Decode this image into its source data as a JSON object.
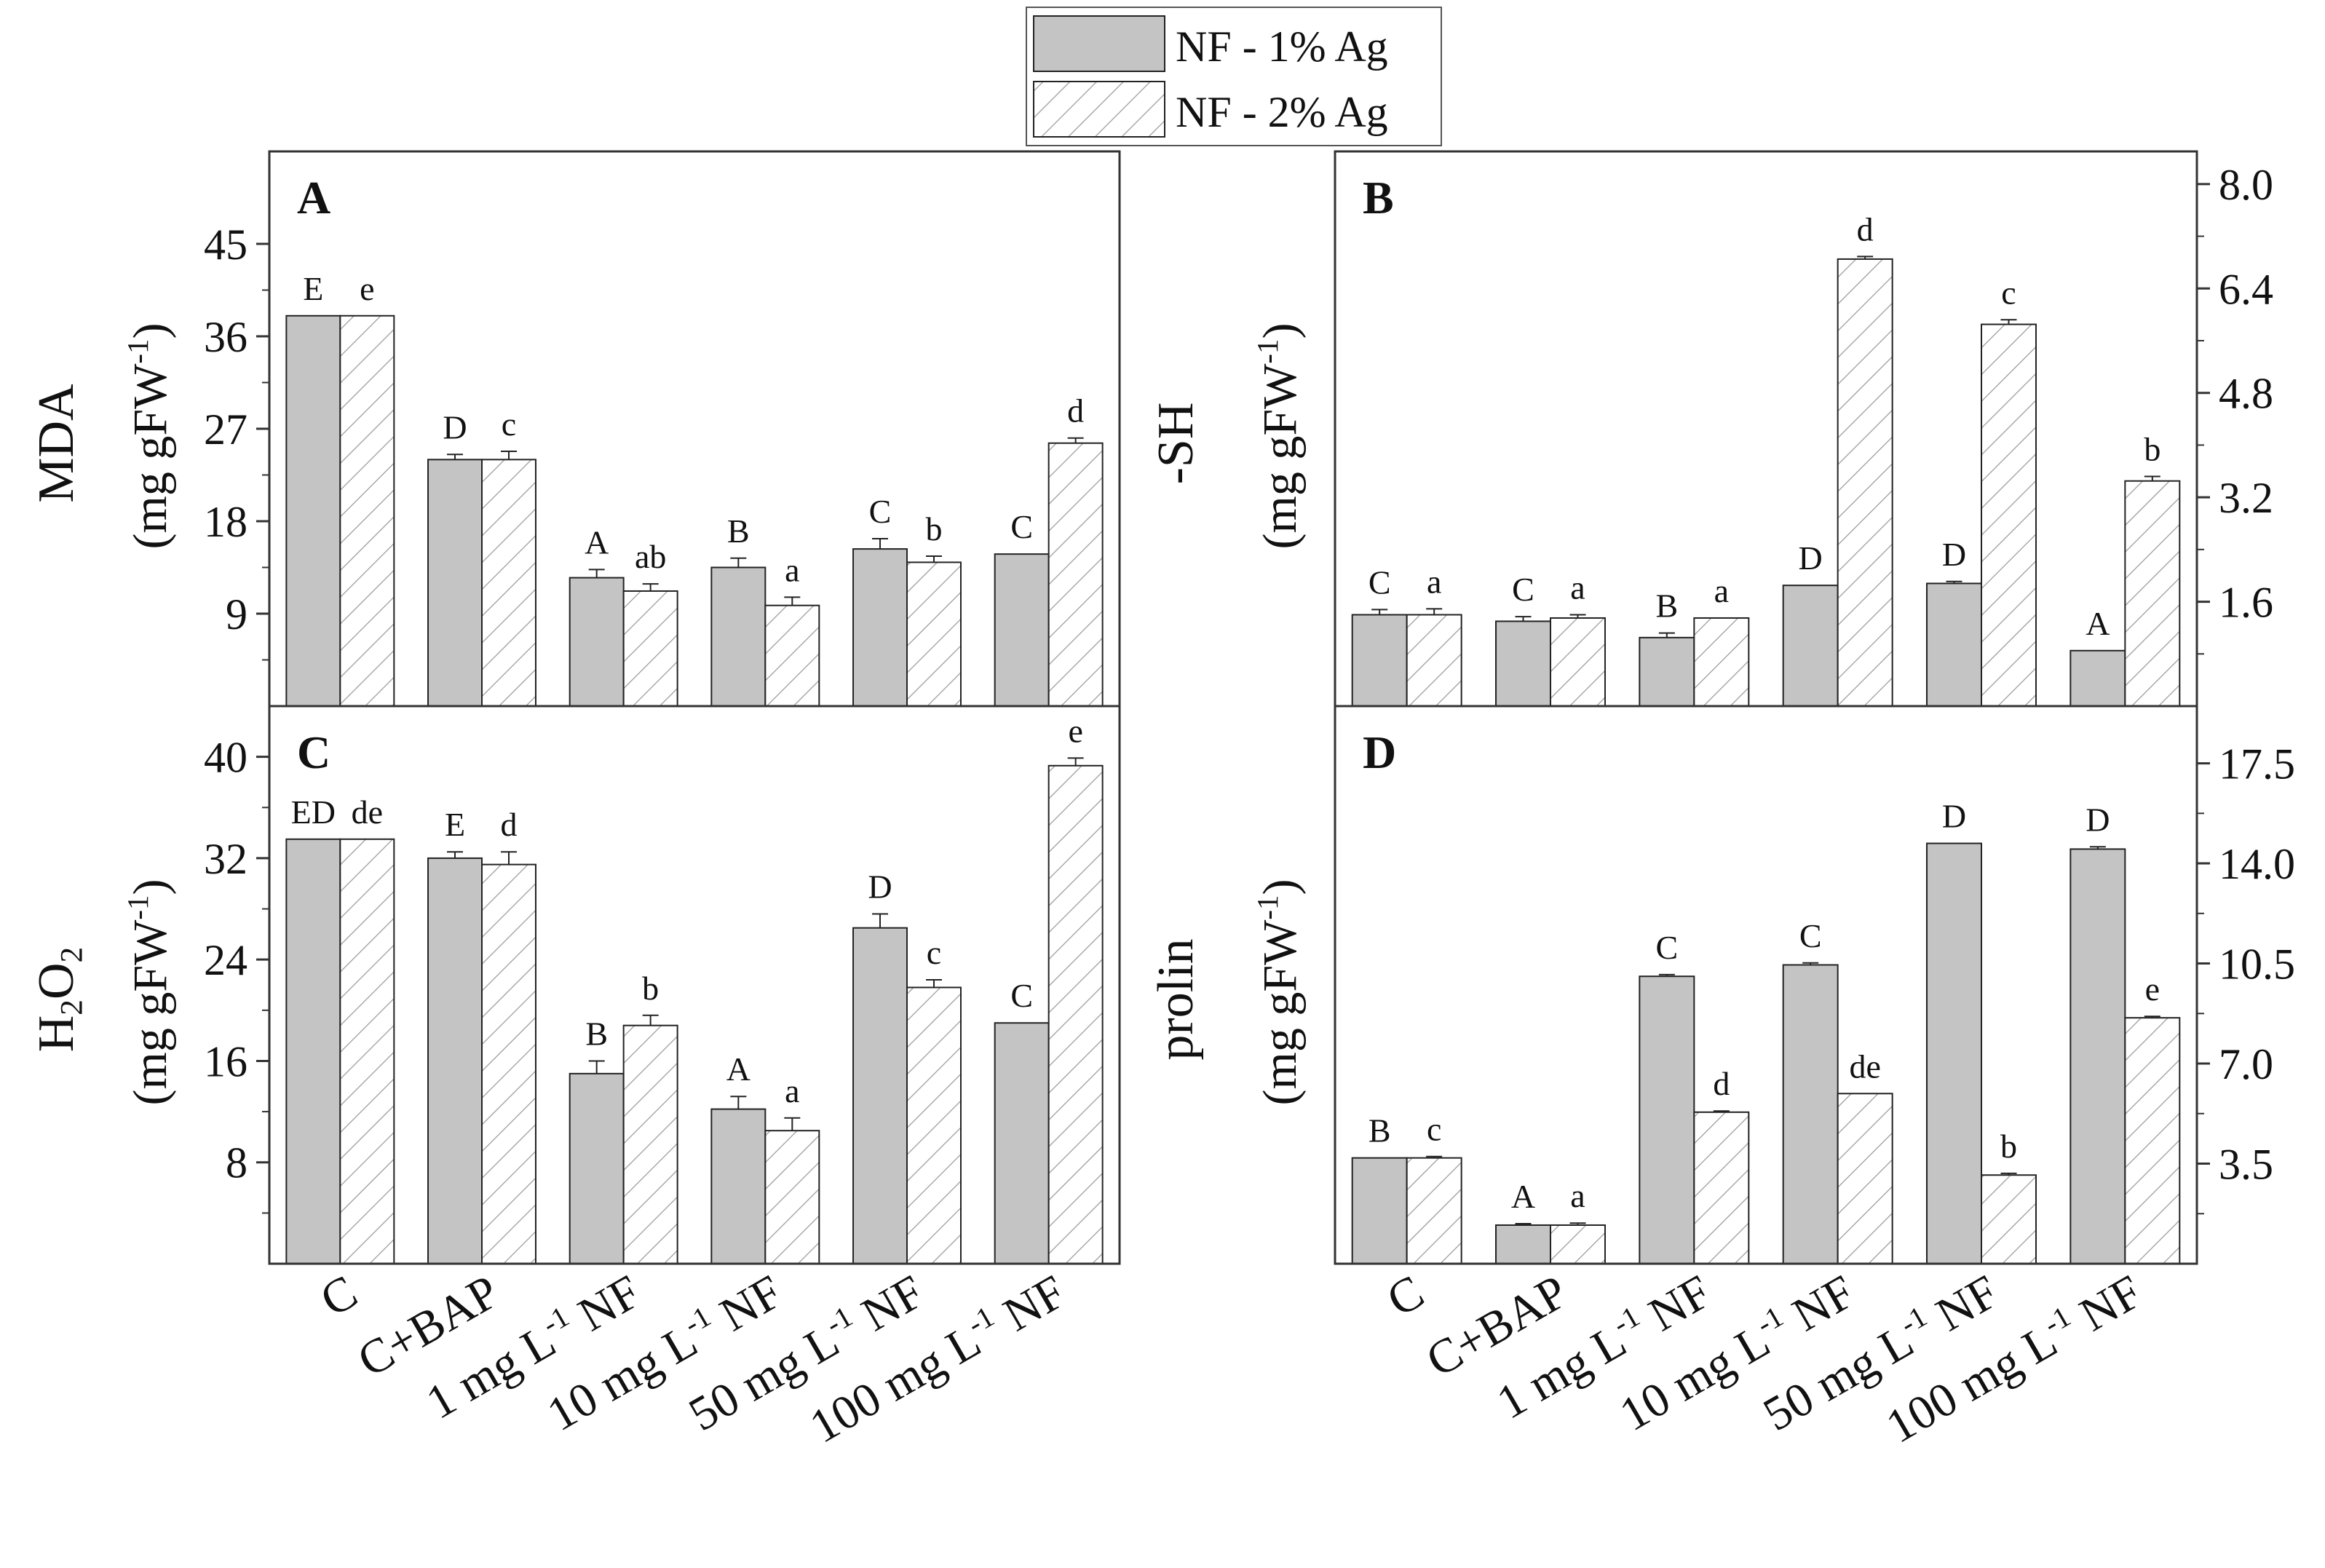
{
  "legend": {
    "entries": [
      {
        "label": "NF - 1% Ag",
        "style": "solid"
      },
      {
        "label": "NF - 2% Ag",
        "style": "hatched"
      }
    ]
  },
  "colors": {
    "bar1": "#c4c4c4",
    "hatch": "#9a9a9a",
    "axis": "#333333"
  },
  "categories": [
    "C",
    "C+BAP",
    "1 mg L-1 NF",
    "10 mg L-1 NF",
    "50 mg L-1 NF",
    "100 mg L-1 NF"
  ],
  "chart_data": [
    {
      "panel": "A",
      "type": "bar",
      "ylabel": "MDA",
      "ylabel_unit": "(mg gFW-1)",
      "yaxis_side": "left",
      "ylim": [
        0,
        54
      ],
      "ticks": [
        "9",
        "18",
        "27",
        "36",
        "45"
      ],
      "series": [
        {
          "name": "NF - 1% Ag",
          "values": [
            38,
            24,
            12.5,
            13.5,
            15.3,
            14.8
          ],
          "errors": [
            0,
            0.5,
            0.8,
            0.9,
            1.0,
            0
          ],
          "letters": [
            "E",
            "D",
            "A",
            "B",
            "C",
            "C"
          ]
        },
        {
          "name": "NF - 2% Ag",
          "values": [
            38,
            24,
            11.2,
            9.8,
            14.0,
            25.6
          ],
          "errors": [
            0,
            0.8,
            0.7,
            0.8,
            0.6,
            0.5
          ],
          "letters": [
            "e",
            "c",
            "ab",
            "a",
            "b",
            "d"
          ]
        }
      ]
    },
    {
      "panel": "B",
      "type": "bar",
      "ylabel": "-SH",
      "ylabel_unit": "(mg gFW-1)",
      "yaxis_side": "right",
      "ylim": [
        0,
        8.5
      ],
      "ticks": [
        "1.6",
        "3.2",
        "4.8",
        "6.4",
        "8.0"
      ],
      "series": [
        {
          "name": "NF - 1% Ag",
          "values": [
            1.4,
            1.3,
            1.05,
            1.85,
            1.88,
            0.85
          ],
          "errors": [
            0.08,
            0.07,
            0.07,
            0,
            0.03,
            0
          ],
          "letters": [
            "C",
            "C",
            "B",
            "D",
            "D",
            "A"
          ]
        },
        {
          "name": "NF - 2% Ag",
          "values": [
            1.4,
            1.35,
            1.35,
            6.85,
            5.85,
            3.45
          ],
          "errors": [
            0.09,
            0.05,
            0,
            0.04,
            0.07,
            0.07
          ],
          "letters": [
            "a",
            "a",
            "a",
            "d",
            "c",
            "b"
          ]
        }
      ]
    },
    {
      "panel": "C",
      "type": "bar",
      "ylabel": "H2O2",
      "ylabel_unit": "(mg gFW-1)",
      "yaxis_side": "left",
      "ylim": [
        0,
        44
      ],
      "ticks": [
        "8",
        "16",
        "24",
        "32",
        "40"
      ],
      "series": [
        {
          "name": "NF - 1% Ag",
          "values": [
            33.5,
            32,
            15,
            12.2,
            26.5,
            19
          ],
          "errors": [
            0,
            0.5,
            1.0,
            1.0,
            1.1,
            0
          ],
          "letters": [
            "ED",
            "E",
            "B",
            "A",
            "D",
            "C"
          ]
        },
        {
          "name": "NF - 2% Ag",
          "values": [
            33.5,
            31.5,
            18.8,
            10.5,
            21.8,
            39.3
          ],
          "errors": [
            0,
            1.0,
            0.8,
            1.0,
            0.6,
            0.6
          ],
          "letters": [
            "de",
            "d",
            "b",
            "a",
            "c",
            "e"
          ]
        }
      ]
    },
    {
      "panel": "D",
      "type": "bar",
      "ylabel": "prolin",
      "ylabel_unit": "(mg gFW-1)",
      "yaxis_side": "right",
      "ylim": [
        0,
        19.5
      ],
      "ticks": [
        "3.5",
        "7.0",
        "10.5",
        "14.0",
        "17.5"
      ],
      "series": [
        {
          "name": "NF - 1% Ag",
          "values": [
            3.7,
            1.35,
            10.05,
            10.45,
            14.7,
            14.5
          ],
          "errors": [
            0,
            0.05,
            0.06,
            0.07,
            0,
            0.08
          ],
          "letters": [
            "B",
            "A",
            "C",
            "C",
            "D",
            "D"
          ]
        },
        {
          "name": "NF - 2% Ag",
          "values": [
            3.7,
            1.35,
            5.3,
            5.95,
            3.1,
            8.6
          ],
          "errors": [
            0.05,
            0.07,
            0.04,
            0,
            0.06,
            0.05
          ],
          "letters": [
            "c",
            "a",
            "d",
            "de",
            "b",
            "e"
          ]
        }
      ]
    }
  ]
}
